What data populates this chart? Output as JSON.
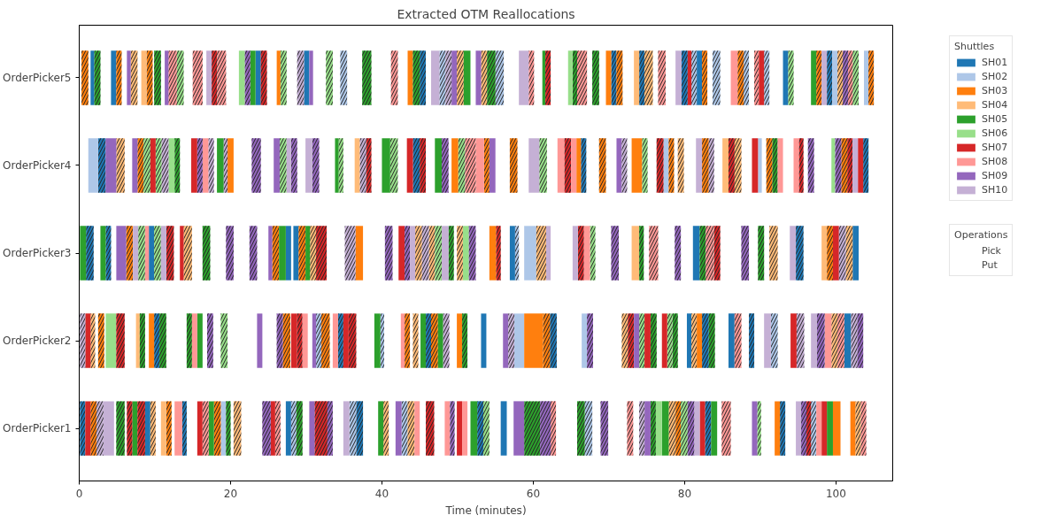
{
  "chart_data": {
    "type": "bar",
    "orientation": "horizontal",
    "title": "Extracted OTM Reallocations",
    "xlabel": "Time (minutes)",
    "categories": [
      "OrderPicker5",
      "OrderPicker4",
      "OrderPicker3",
      "OrderPicker2",
      "OrderPicker1"
    ],
    "xlim": [
      0,
      107.5
    ],
    "xticks": [
      0,
      20,
      40,
      60,
      80,
      100
    ],
    "grid": false,
    "legend": "right",
    "legend_title": "Shuttles",
    "annotations": [
      "Operations",
      "Pick",
      "Put"
    ],
    "series": [
      {
        "name": "SH01",
        "color": "#1f77b4",
        "line_style": "solid",
        "base": [
          1.5,
          null,
          9.2,
          53.1,
          8.7
        ],
        "values": [
          0.5,
          null,
          0.7,
          0.7,
          0.7
        ]
      },
      {
        "color": "#1f77b4",
        "line_style": "solid",
        "base": [
          4.2,
          null,
          27.3,
          80.3,
          27.3
        ],
        "values": [
          0.7,
          null,
          0.7,
          0.6,
          0.7
        ]
      },
      {
        "color": "#1f77b4",
        "line_style": "solid",
        "base": [
          23.3,
          null,
          28.3,
          85.8,
          55.7
        ],
        "values": [
          0.7,
          null,
          0.7,
          0.8,
          0.8
        ]
      },
      {
        "color": "#1f77b4",
        "line_style": "solid",
        "base": [
          29.7,
          null,
          56.9,
          101.1,
          null
        ],
        "values": [
          0.7,
          null,
          0.7,
          0.9,
          null
        ]
      },
      {
        "color": "#1f77b4",
        "line_style": "solid",
        "base": [
          81.6,
          null,
          81.1,
          null,
          null
        ],
        "values": [
          0.7,
          null,
          0.9,
          null,
          null
        ]
      },
      {
        "color": "#1f77b4",
        "line_style": "solid",
        "base": [
          93.0,
          null,
          102.2,
          null,
          null
        ],
        "values": [
          0.7,
          null,
          0.8,
          null,
          null
        ]
      },
      {
        "color": "#1f77b4",
        "line_style": "dashed",
        "base": [
          45.0,
          2.5,
          0.9,
          9.9,
          0.1
        ],
        "values": [
          0.8,
          1.0,
          1.0,
          0.7,
          0.7
        ]
      },
      {
        "color": "#1f77b4",
        "line_style": "dashed",
        "base": [
          70.3,
          44.1,
          3.5,
          34.2,
          13.6
        ],
        "values": [
          0.7,
          0.9,
          0.7,
          0.7,
          0.6
        ]
      },
      {
        "color": "#1f77b4",
        "line_style": "dashed",
        "base": [
          74.0,
          66.3,
          94.7,
          45.8,
          36.6
        ],
        "values": [
          0.7,
          0.7,
          1.0,
          0.7,
          0.9
        ]
      },
      {
        "color": "#1f77b4",
        "line_style": "dashed",
        "base": [
          79.6,
          103.6,
          null,
          62.2,
          52.6
        ],
        "values": [
          0.8,
          0.7,
          null,
          0.9,
          0.8
        ]
      },
      {
        "color": "#1f77b4",
        "line_style": "dashed",
        "base": [
          98.8,
          null,
          null,
          82.3,
          82.7
        ],
        "values": [
          0.7,
          null,
          null,
          0.9,
          0.8
        ]
      },
      {
        "color": "#1f77b4",
        "line_style": "dashed",
        "base": [
          null,
          null,
          null,
          88.5,
          92.6
        ],
        "values": [
          null,
          null,
          null,
          0.7,
          0.7
        ]
      },
      {
        "name": "SH02",
        "color": "#aec7e8",
        "line_style": "solid",
        "base": [
          99.5,
          1.2,
          58.8,
          57.5,
          18.7
        ],
        "values": [
          0.7,
          1.3,
          1.6,
          1.3,
          0.7
        ]
      },
      {
        "color": "#aec7e8",
        "line_style": "solid",
        "base": [
          103.7,
          77.2,
          null,
          66.4,
          null
        ],
        "values": [
          0.6,
          0.7,
          null,
          0.7,
          null
        ]
      },
      {
        "color": "#aec7e8",
        "line_style": "solid",
        "base": [
          null,
          89.7,
          null,
          null,
          null
        ],
        "values": [
          null,
          0.5,
          null,
          null,
          null
        ]
      },
      {
        "color": "#aec7e8",
        "line_style": "dashed",
        "base": [
          34.5,
          null,
          57.6,
          31.3,
          28.0
        ],
        "values": [
          0.9,
          null,
          0.5,
          0.7,
          0.7
        ]
      },
      {
        "color": "#aec7e8",
        "line_style": "dashed",
        "base": [
          47.6,
          null,
          null,
          39.8,
          35.7
        ],
        "values": [
          0.8,
          null,
          null,
          0.5,
          0.9
        ]
      },
      {
        "color": "#aec7e8",
        "line_style": "dashed",
        "base": [
          55.0,
          null,
          null,
          91.4,
          42.6
        ],
        "values": [
          1.1,
          null,
          null,
          0.9,
          0.8
        ]
      },
      {
        "color": "#aec7e8",
        "line_style": "dashed",
        "base": [
          80.9,
          null,
          null,
          null,
          66.8
        ],
        "values": [
          0.7,
          null,
          null,
          null,
          1.0
        ]
      },
      {
        "color": "#aec7e8",
        "line_style": "dashed",
        "base": [
          83.7,
          null,
          null,
          null,
          96.7
        ],
        "values": [
          1.0,
          null,
          null,
          null,
          0.7
        ]
      },
      {
        "color": "#aec7e8",
        "line_style": "dashed",
        "base": [
          87.8,
          null,
          null,
          null,
          null
        ],
        "values": [
          0.7,
          null,
          null,
          null,
          null
        ]
      },
      {
        "color": "#aec7e8",
        "line_style": "dashed",
        "base": [
          90.5,
          null,
          null,
          null,
          null
        ],
        "values": [
          0.7,
          null,
          null,
          null,
          null
        ]
      },
      {
        "name": "SH03",
        "color": "#ff7f0e",
        "line_style": "solid",
        "base": [
          26.1,
          19.6,
          36.5,
          9.2,
          91.9
        ],
        "values": [
          0.5,
          0.8,
          1.0,
          0.7,
          0.7
        ]
      },
      {
        "color": "#ff7f0e",
        "line_style": "solid",
        "base": [
          43.4,
          49.2,
          54.2,
          49.9,
          99.6
        ],
        "values": [
          0.7,
          0.9,
          0.9,
          0.7,
          1.0
        ]
      },
      {
        "color": "#ff7f0e",
        "line_style": "solid",
        "base": [
          69.6,
          65.7,
          null,
          58.8,
          101.9
        ],
        "values": [
          0.7,
          0.6,
          null,
          2.5,
          0.7
        ]
      },
      {
        "color": "#ff7f0e",
        "line_style": "solid",
        "base": [
          null,
          73.0,
          null,
          81.6,
          null
        ],
        "values": [
          null,
          1.4,
          null,
          0.7,
          null
        ]
      },
      {
        "color": "#ff7f0e",
        "line_style": "dashed",
        "base": [
          0.3,
          7.7,
          6.2,
          2.5,
          1.5
        ],
        "values": [
          0.9,
          0.8,
          0.9,
          0.8,
          0.8
        ]
      },
      {
        "color": "#ff7f0e",
        "line_style": "dashed",
        "base": [
          4.9,
          53.5,
          25.5,
          26.9,
          11.5
        ],
        "values": [
          0.7,
          0.7,
          0.9,
          1.0,
          0.7
        ]
      },
      {
        "color": "#ff7f0e",
        "line_style": "dashed",
        "base": [
          8.9,
          56.9,
          29.0,
          32.0,
          17.8
        ],
        "values": [
          0.8,
          1.0,
          0.9,
          1.1,
          0.9
        ]
      },
      {
        "color": "#ff7f0e",
        "line_style": "dashed",
        "base": [
          71.0,
          68.7,
          98.8,
          43.0,
          78.8
        ],
        "values": [
          0.8,
          0.9,
          0.8,
          0.7,
          0.7
        ]
      },
      {
        "color": "#ff7f0e",
        "line_style": "dashed",
        "base": [
          82.3,
          77.9,
          null,
          46.5,
          null
        ],
        "values": [
          0.7,
          0.7,
          null,
          0.9,
          null
        ]
      },
      {
        "color": "#ff7f0e",
        "line_style": "dashed",
        "base": [
          87.0,
          82.3,
          null,
          61.3,
          null
        ],
        "values": [
          0.8,
          0.9,
          null,
          0.9,
          null
        ]
      },
      {
        "color": "#ff7f0e",
        "line_style": "dashed",
        "base": [
          97.4,
          90.8,
          null,
          null,
          null
        ],
        "values": [
          0.7,
          0.8,
          null,
          null,
          null
        ]
      },
      {
        "color": "#ff7f0e",
        "line_style": "dashed",
        "base": [
          104.3,
          100.7,
          null,
          null,
          null
        ],
        "values": [
          0.7,
          0.8,
          null,
          null,
          null
        ]
      },
      {
        "name": "SH04",
        "color": "#ffbb78",
        "line_style": "solid",
        "base": [
          8.2,
          36.4,
          73.0,
          7.5,
          10.8
        ],
        "values": [
          0.7,
          0.7,
          1.0,
          0.5,
          0.7
        ]
      },
      {
        "color": "#ffbb78",
        "line_style": "solid",
        "base": [
          73.3,
          85.0,
          98.1,
          null,
          null
        ],
        "values": [
          0.7,
          0.8,
          0.7,
          null,
          null
        ]
      },
      {
        "color": "#ffbb78",
        "line_style": "dashed",
        "base": [
          6.8,
          4.9,
          13.8,
          1.5,
          9.4
        ],
        "values": [
          0.9,
          1.1,
          1.1,
          0.6,
          0.7
        ]
      },
      {
        "color": "#ffbb78",
        "line_style": "dashed",
        "base": [
          49.9,
          79.1,
          30.5,
          44.1,
          20.4
        ],
        "values": [
          0.9,
          0.8,
          0.8,
          0.7,
          1.0
        ]
      },
      {
        "color": "#ffbb78",
        "line_style": "dashed",
        "base": [
          53.1,
          86.6,
          44.4,
          71.7,
          40.2
        ],
        "values": [
          0.8,
          0.9,
          0.9,
          0.8,
          0.7
        ]
      },
      {
        "color": "#ffbb78",
        "line_style": "dashed",
        "base": [
          74.7,
          null,
          46.2,
          80.9,
          43.4
        ],
        "values": [
          1.1,
          null,
          0.8,
          0.7,
          0.9
        ]
      },
      {
        "color": "#ffbb78",
        "line_style": "dashed",
        "base": [
          100.2,
          null,
          49.9,
          99.4,
          77.9
        ],
        "values": [
          0.7,
          null,
          0.8,
          0.8,
          0.9
        ]
      },
      {
        "color": "#ffbb78",
        "line_style": "dashed",
        "base": [
          null,
          null,
          60.4,
          null,
          102.6
        ],
        "values": [
          null,
          null,
          1.3,
          null,
          0.7
        ]
      },
      {
        "color": "#ffbb78",
        "line_style": "dashed",
        "base": [
          null,
          null,
          91.2,
          null,
          null
        ],
        "values": [
          null,
          null,
          1.1,
          null,
          null
        ]
      },
      {
        "color": "#ffbb78",
        "line_style": "dashed",
        "base": [
          null,
          null,
          101.3,
          null,
          null
        ],
        "values": [
          null,
          null,
          0.9,
          null,
          null
        ]
      },
      {
        "name": "SH05",
        "color": "#2ca02c",
        "line_style": "solid",
        "base": [
          22.6,
          18.2,
          0.1,
          15.6,
          7.0
        ],
        "values": [
          0.7,
          0.9,
          0.8,
          0.7,
          0.7
        ]
      },
      {
        "color": "#2ca02c",
        "line_style": "solid",
        "base": [
          50.8,
          33.8,
          2.8,
          39.0,
          17.1
        ],
        "values": [
          0.9,
          0.5,
          0.7,
          0.8,
          0.7
        ]
      },
      {
        "color": "#2ca02c",
        "line_style": "solid",
        "base": [
          61.2,
          40.0,
          26.4,
          45.1,
          39.5
        ],
        "values": [
          0.4,
          1.1,
          0.9,
          0.7,
          0.7
        ]
      },
      {
        "color": "#2ca02c",
        "line_style": "solid",
        "base": [
          96.7,
          47.0,
          29.9,
          47.4,
          51.7
        ],
        "values": [
          0.7,
          0.9,
          0.6,
          0.7,
          0.9
        ]
      },
      {
        "color": "#2ca02c",
        "line_style": "solid",
        "base": [
          null,
          null,
          null,
          null,
          77.0
        ],
        "values": [
          null,
          null,
          null,
          null,
          0.9
        ]
      },
      {
        "color": "#2ca02c",
        "line_style": "solid",
        "base": [
          null,
          null,
          null,
          null,
          83.5
        ],
        "values": [
          null,
          null,
          null,
          null,
          0.8
        ]
      },
      {
        "color": "#2ca02c",
        "line_style": "solid",
        "base": [
          null,
          null,
          null,
          null,
          98.8
        ],
        "values": [
          null,
          null,
          null,
          null,
          0.8
        ]
      },
      {
        "color": "#2ca02c",
        "line_style": "dashed",
        "base": [
          2.0,
          12.6,
          16.3,
          8.0,
          4.9
        ],
        "values": [
          0.8,
          0.7,
          1.0,
          0.7,
          1.1
        ]
      },
      {
        "color": "#2ca02c",
        "line_style": "dashed",
        "base": [
          9.9,
          91.6,
          48.8,
          10.6,
          19.4
        ],
        "values": [
          0.9,
          0.7,
          0.7,
          0.9,
          0.6
        ]
      },
      {
        "color": "#2ca02c",
        "line_style": "dashed",
        "base": [
          37.4,
          null,
          74.0,
          14.2,
          28.7
        ],
        "values": [
          1.2,
          null,
          0.6,
          0.7,
          0.8
        ]
      },
      {
        "color": "#2ca02c",
        "line_style": "dashed",
        "base": [
          44.1,
          null,
          82.0,
          50.6,
          58.8
        ],
        "values": [
          0.9,
          null,
          0.8,
          0.7,
          2.1
        ]
      },
      {
        "color": "#2ca02c",
        "line_style": "dashed",
        "base": [
          53.9,
          null,
          89.7,
          75.5,
          65.8
        ],
        "values": [
          1.1,
          null,
          0.8,
          0.8,
          1.0
        ]
      },
      {
        "color": "#2ca02c",
        "line_style": "dashed",
        "base": [
          65.2,
          null,
          null,
          78.4,
          75.5
        ],
        "values": [
          0.6,
          null,
          null,
          0.7,
          0.7
        ]
      },
      {
        "color": "#2ca02c",
        "line_style": "dashed",
        "base": [
          67.8,
          null,
          null,
          83.2,
          null
        ],
        "values": [
          0.9,
          null,
          null,
          0.8,
          null
        ]
      },
      {
        "name": "SH06",
        "color": "#98df8a",
        "line_style": "solid",
        "base": [
          21.1,
          11.8,
          50.7,
          3.5,
          76.2
        ],
        "values": [
          0.8,
          0.8,
          0.8,
          1.4,
          0.8
        ]
      },
      {
        "color": "#98df8a",
        "line_style": "solid",
        "base": [
          64.6,
          99.4,
          null,
          null,
          null
        ],
        "values": [
          0.6,
          0.5,
          null,
          null,
          null
        ]
      },
      {
        "color": "#98df8a",
        "line_style": "dashed",
        "base": [
          12.9,
          8.5,
          7.8,
          18.7,
          53.4
        ],
        "values": [
          0.9,
          0.9,
          0.9,
          0.9,
          0.8
        ]
      },
      {
        "color": "#98df8a",
        "line_style": "dashed",
        "base": [
          26.6,
          10.1,
          9.9,
          74.0,
          79.5
        ],
        "values": [
          0.8,
          0.8,
          0.9,
          0.7,
          0.9
        ]
      },
      {
        "color": "#98df8a",
        "line_style": "dashed",
        "base": [
          32.6,
          26.5,
          47.0,
          77.7,
          89.6
        ],
        "values": [
          0.9,
          0.9,
          0.9,
          0.7,
          0.5
        ]
      },
      {
        "color": "#98df8a",
        "line_style": "dashed",
        "base": [
          93.7,
          34.3,
          67.5,
          null,
          null
        ],
        "values": [
          0.7,
          0.6,
          0.7,
          null,
          null
        ]
      },
      {
        "color": "#98df8a",
        "line_style": "dashed",
        "base": [
          102.2,
          41.1,
          null,
          null,
          null
        ],
        "values": [
          0.8,
          1.0,
          null,
          null,
          null
        ]
      },
      {
        "color": "#98df8a",
        "line_style": "dashed",
        "base": [
          null,
          50.1,
          null,
          null,
          null
        ],
        "values": [
          null,
          0.9,
          null,
          null,
          null
        ]
      },
      {
        "color": "#98df8a",
        "line_style": "dashed",
        "base": [
          null,
          60.8,
          null,
          null,
          null
        ],
        "values": [
          null,
          1.0,
          null,
          null,
          null
        ]
      },
      {
        "color": "#98df8a",
        "line_style": "dashed",
        "base": [
          null,
          74.4,
          null,
          null,
          null
        ],
        "values": [
          null,
          0.7,
          null,
          null,
          null
        ]
      },
      {
        "name": "SH07",
        "color": "#d62728",
        "line_style": "solid",
        "base": [
          80.4,
          9.4,
          13.3,
          0.8,
          0.8
        ],
        "values": [
          0.5,
          0.7,
          0.5,
          0.7,
          0.7
        ]
      },
      {
        "color": "#d62728",
        "line_style": "solid",
        "base": [
          89.8,
          14.8,
          42.2,
          28.0,
          15.6
        ],
        "values": [
          0.7,
          0.8,
          0.8,
          0.8,
          0.7
        ]
      },
      {
        "color": "#d62728",
        "line_style": "solid",
        "base": [
          null,
          43.3,
          99.6,
          34.9,
          25.3
        ],
        "values": [
          null,
          0.8,
          0.8,
          0.7,
          0.6
        ]
      },
      {
        "color": "#d62728",
        "line_style": "solid",
        "base": [
          null,
          88.9,
          null,
          74.7,
          49.9
        ],
        "values": [
          null,
          0.8,
          null,
          0.8,
          0.7
        ]
      },
      {
        "color": "#d62728",
        "line_style": "solid",
        "base": [
          null,
          102.9,
          null,
          77.0,
          82.0
        ],
        "values": [
          null,
          0.7,
          null,
          0.7,
          0.7
        ]
      },
      {
        "color": "#d62728",
        "line_style": "solid",
        "base": [
          null,
          null,
          null,
          94.0,
          98.1
        ],
        "values": [
          null,
          null,
          null,
          0.8,
          0.7
        ]
      },
      {
        "color": "#d62728",
        "line_style": "dashed",
        "base": [
          17.5,
          37.9,
          11.5,
          4.9,
          6.3
        ],
        "values": [
          0.7,
          0.7,
          1.0,
          1.1,
          0.7
        ]
      },
      {
        "color": "#d62728",
        "line_style": "dashed",
        "base": [
          24.0,
          45.0,
          31.3,
          28.8,
          7.7
        ],
        "values": [
          0.8,
          0.8,
          1.4,
          0.7,
          1.0
        ]
      },
      {
        "color": "#d62728",
        "line_style": "dashed",
        "base": [
          61.6,
          64.1,
          55.1,
          35.6,
          31.1
        ],
        "values": [
          0.7,
          0.9,
          0.6,
          1.0,
          1.7
        ]
      },
      {
        "color": "#d62728",
        "line_style": "dashed",
        "base": [
          null,
          76.3,
          65.9,
          72.5,
          45.8
        ],
        "values": [
          null,
          0.9,
          0.8,
          0.8,
          1.1
        ]
      },
      {
        "color": "#d62728",
        "line_style": "dashed",
        "base": [
          null,
          85.8,
          83.9,
          null,
          96.1
        ],
        "values": [
          null,
          0.8,
          0.8,
          null,
          0.6
        ]
      },
      {
        "color": "#d62728",
        "line_style": "dashed",
        "base": [
          null,
          95.1,
          null,
          null,
          null
        ],
        "values": [
          null,
          0.6,
          null,
          null,
          null
        ]
      },
      {
        "color": "#d62728",
        "line_style": "dashed",
        "base": [
          null,
          101.5,
          null,
          null,
          null
        ],
        "values": [
          null,
          0.7,
          null,
          null,
          null
        ]
      },
      {
        "name": "SH08",
        "color": "#ff9896",
        "line_style": "solid",
        "base": [
          86.1,
          16.3,
          8.7,
          14.9,
          12.6
        ],
        "values": [
          0.9,
          0.8,
          0.5,
          0.7,
          1.0
        ]
      },
      {
        "color": "#ff9896",
        "line_style": "solid",
        "base": [
          null,
          52.4,
          66.7,
          29.5,
          44.3
        ],
        "values": [
          null,
          1.1,
          0.8,
          0.7,
          0.7
        ]
      },
      {
        "color": "#ff9896",
        "line_style": "solid",
        "base": [
          null,
          63.2,
          null,
          33.5,
          48.3
        ],
        "values": [
          null,
          0.9,
          null,
          0.7,
          0.7
        ]
      },
      {
        "color": "#ff9896",
        "line_style": "solid",
        "base": [
          null,
          65.0,
          null,
          42.5,
          50.6
        ],
        "values": [
          null,
          0.7,
          null,
          0.5,
          0.7
        ]
      },
      {
        "color": "#ff9896",
        "line_style": "solid",
        "base": [
          null,
          92.3,
          null,
          98.5,
          97.4
        ],
        "values": [
          null,
          0.7,
          null,
          0.9,
          0.7
        ]
      },
      {
        "color": "#ff9896",
        "line_style": "solid",
        "base": [
          null,
          94.4,
          null,
          null,
          null
        ],
        "values": [
          null,
          0.7,
          null,
          null,
          null
        ]
      },
      {
        "color": "#ff9896",
        "line_style": "dashed",
        "base": [
          11.8,
          51.0,
          75.3,
          86.6,
          16.3
        ],
        "values": [
          1.1,
          1.4,
          1.2,
          0.9,
          0.8
        ]
      },
      {
        "color": "#ff9896",
        "line_style": "dashed",
        "base": [
          15.0,
          null,
          82.8,
          100.2,
          25.9
        ],
        "values": [
          1.3,
          null,
          1.1,
          0.9,
          0.7
        ]
      },
      {
        "color": "#ff9896",
        "line_style": "dashed",
        "base": [
          18.2,
          null,
          null,
          null,
          62.3
        ],
        "values": [
          1.2,
          null,
          null,
          null,
          0.7
        ]
      },
      {
        "color": "#ff9896",
        "line_style": "dashed",
        "base": [
          41.2,
          null,
          null,
          null,
          72.4
        ],
        "values": [
          0.9,
          null,
          null,
          null,
          0.8
        ]
      },
      {
        "color": "#ff9896",
        "line_style": "dashed",
        "base": [
          59.4,
          null,
          null,
          null,
          84.9
        ],
        "values": [
          0.7,
          null,
          null,
          null,
          1.2
        ]
      },
      {
        "color": "#ff9896",
        "line_style": "dashed",
        "base": [
          65.8,
          null,
          null,
          null,
          103.3
        ],
        "values": [
          1.3,
          null,
          null,
          null,
          0.7
        ]
      },
      {
        "color": "#ff9896",
        "line_style": "dashed",
        "base": [
          76.5,
          null,
          null,
          null,
          null
        ],
        "values": [
          1.0,
          null,
          null,
          null,
          null
        ]
      },
      {
        "color": "#ff9896",
        "line_style": "dashed",
        "base": [
          89.2,
          null,
          null,
          null,
          null
        ],
        "values": [
          0.6,
          null,
          null,
          null,
          null
        ]
      },
      {
        "color": "#ff9896",
        "line_style": "dashed",
        "base": [
          101.6,
          null,
          null,
          null,
          null
        ],
        "values": [
          0.6,
          null,
          null,
          null,
          null
        ]
      },
      {
        "name": "SH09",
        "color": "#9467bd",
        "line_style": "solid",
        "base": [
          6.3,
          3.5,
          4.9,
          23.5,
          30.4
        ],
        "values": [
          0.5,
          1.4,
          1.3,
          0.7,
          0.7
        ]
      },
      {
        "color": "#9467bd",
        "line_style": "solid",
        "base": [
          11.3,
          7.0,
          25.0,
          30.8,
          41.8
        ],
        "values": [
          0.5,
          0.7,
          0.5,
          0.5,
          0.8
        ]
      },
      {
        "color": "#9467bd",
        "line_style": "solid",
        "base": [
          30.4,
          25.7,
          null,
          56.0,
          57.4
        ],
        "values": [
          0.5,
          0.8,
          null,
          0.7,
          1.4
        ]
      },
      {
        "color": "#9467bd",
        "line_style": "solid",
        "base": [
          49.2,
          54.2,
          null,
          73.3,
          74.7
        ],
        "values": [
          0.7,
          0.8,
          null,
          0.7,
          0.8
        ]
      },
      {
        "color": "#9467bd",
        "line_style": "solid",
        "base": [
          52.4,
          71.0,
          null,
          null,
          88.9
        ],
        "values": [
          0.7,
          0.7,
          null,
          null,
          0.7
        ]
      },
      {
        "color": "#9467bd",
        "line_style": "dashed",
        "base": [
          21.9,
          15.6,
          19.4,
          16.9,
          24.2
        ],
        "values": [
          0.7,
          0.7,
          1.0,
          0.8,
          1.1
        ]
      },
      {
        "color": "#9467bd",
        "line_style": "dashed",
        "base": [
          100.9,
          22.8,
          22.5,
          26.1,
          32.8
        ],
        "values": [
          0.7,
          1.2,
          1.0,
          0.8,
          0.7
        ]
      },
      {
        "color": "#9467bd",
        "line_style": "dashed",
        "base": [
          null,
          28.0,
          40.4,
          67.1,
          49.0
        ],
        "values": [
          null,
          0.8,
          1.0,
          0.8,
          0.6
        ]
      },
      {
        "color": "#9467bd",
        "line_style": "dashed",
        "base": [
          null,
          30.8,
          43.0,
          97.5,
          60.9
        ],
        "values": [
          null,
          0.9,
          0.7,
          1.0,
          1.4
        ]
      },
      {
        "color": "#9467bd",
        "line_style": "dashed",
        "base": [
          null,
          47.9,
          51.5,
          102.8,
          68.9
        ],
        "values": [
          null,
          0.9,
          0.9,
          0.8,
          1.0
        ]
      },
      {
        "color": "#9467bd",
        "line_style": "dashed",
        "base": [
          null,
          96.3,
          70.3,
          null,
          80.4
        ],
        "values": [
          null,
          0.8,
          1.0,
          null,
          0.9
        ]
      },
      {
        "color": "#9467bd",
        "line_style": "dashed",
        "base": [
          null,
          99.9,
          78.7,
          null,
          95.4
        ],
        "values": [
          null,
          0.8,
          0.8,
          null,
          0.7
        ]
      },
      {
        "color": "#9467bd",
        "line_style": "dashed",
        "base": [
          null,
          null,
          87.5,
          null,
          null
        ],
        "values": [
          null,
          null,
          1.0,
          null,
          null
        ]
      },
      {
        "name": "SH10",
        "color": "#c5b0d5",
        "line_style": "solid",
        "base": [
          16.8,
          27.4,
          7.1,
          90.5,
          3.2
        ],
        "values": [
          0.7,
          0.6,
          0.7,
          0.9,
          1.4
        ]
      },
      {
        "color": "#c5b0d5",
        "line_style": "solid",
        "base": [
          46.5,
          29.9,
          10.8,
          96.7,
          34.9
        ],
        "values": [
          1.1,
          0.9,
          0.7,
          0.8,
          0.8
        ]
      },
      {
        "color": "#c5b0d5",
        "line_style": "solid",
        "base": [
          58.1,
          59.4,
          43.7,
          null,
          81.3
        ],
        "values": [
          1.3,
          1.4,
          0.7,
          null,
          0.7
        ]
      },
      {
        "color": "#c5b0d5",
        "line_style": "solid",
        "base": [
          78.8,
          81.5,
          47.9,
          null,
          94.7
        ],
        "values": [
          0.8,
          0.8,
          0.9,
          null,
          0.7
        ]
      },
      {
        "color": "#c5b0d5",
        "line_style": "solid",
        "base": [
          98.1,
          102.2,
          61.7,
          null,
          null
        ],
        "values": [
          0.7,
          0.7,
          0.6,
          null,
          null
        ]
      },
      {
        "color": "#c5b0d5",
        "line_style": "solid",
        "base": [
          null,
          null,
          65.2,
          null,
          null
        ],
        "values": [
          null,
          null,
          0.7,
          null,
          null
        ]
      },
      {
        "color": "#c5b0d5",
        "line_style": "solid",
        "base": [
          null,
          null,
          93.9,
          null,
          null
        ],
        "values": [
          null,
          null,
          0.8,
          null,
          null
        ]
      },
      {
        "color": "#c5b0d5",
        "line_style": "dashed",
        "base": [
          28.8,
          10.9,
          35.1,
          0.1,
          2.3
        ],
        "values": [
          0.9,
          0.9,
          1.4,
          0.7,
          0.9
        ]
      },
      {
        "color": "#c5b0d5",
        "line_style": "dashed",
        "base": [
          48.4,
          17.1,
          45.3,
          48.1,
          74.0
        ],
        "values": [
          0.8,
          0.7,
          0.9,
          0.8,
          0.7
        ]
      },
      {
        "color": "#c5b0d5",
        "line_style": "dashed",
        "base": [
          null,
          19.1,
          100.4,
          56.7,
          null
        ],
        "values": [
          null,
          0.5,
          0.9,
          0.8,
          null
        ]
      },
      {
        "color": "#c5b0d5",
        "line_style": "dashed",
        "base": [
          null,
          37.1,
          null,
          94.8,
          null
        ],
        "values": [
          null,
          0.8,
          null,
          1.0,
          null
        ]
      },
      {
        "color": "#c5b0d5",
        "line_style": "dashed",
        "base": [
          null,
          71.7,
          null,
          102.0,
          null
        ],
        "values": [
          null,
          0.7,
          null,
          0.8,
          null
        ]
      },
      {
        "color": "#c5b0d5",
        "line_style": "dashed",
        "base": [
          null,
          83.2,
          null,
          null,
          null
        ],
        "values": [
          null,
          0.7,
          null,
          null,
          null
        ]
      }
    ]
  }
}
